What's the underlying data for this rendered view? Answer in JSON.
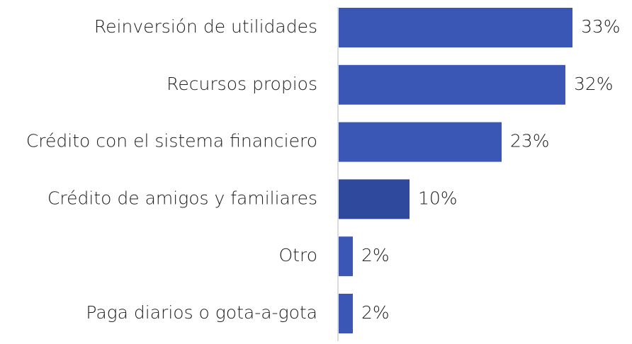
{
  "chart_data": {
    "type": "bar",
    "orientation": "horizontal",
    "categories": [
      "Reinversión de utilidades",
      "Recursos propios",
      "Crédito con el sistema financiero",
      "Crédito de amigos y familiares",
      "Otro",
      "Paga diarios o gota-a-gota"
    ],
    "values": [
      33,
      32,
      23,
      10,
      2,
      2
    ],
    "value_labels": [
      "33%",
      "32%",
      "23%",
      "10%",
      "2%",
      "2%"
    ],
    "colors": [
      "#3b57b6",
      "#3b57b6",
      "#3b57b6",
      "#2f4a9c",
      "#3b57b6",
      "#3b57b6"
    ]
  }
}
